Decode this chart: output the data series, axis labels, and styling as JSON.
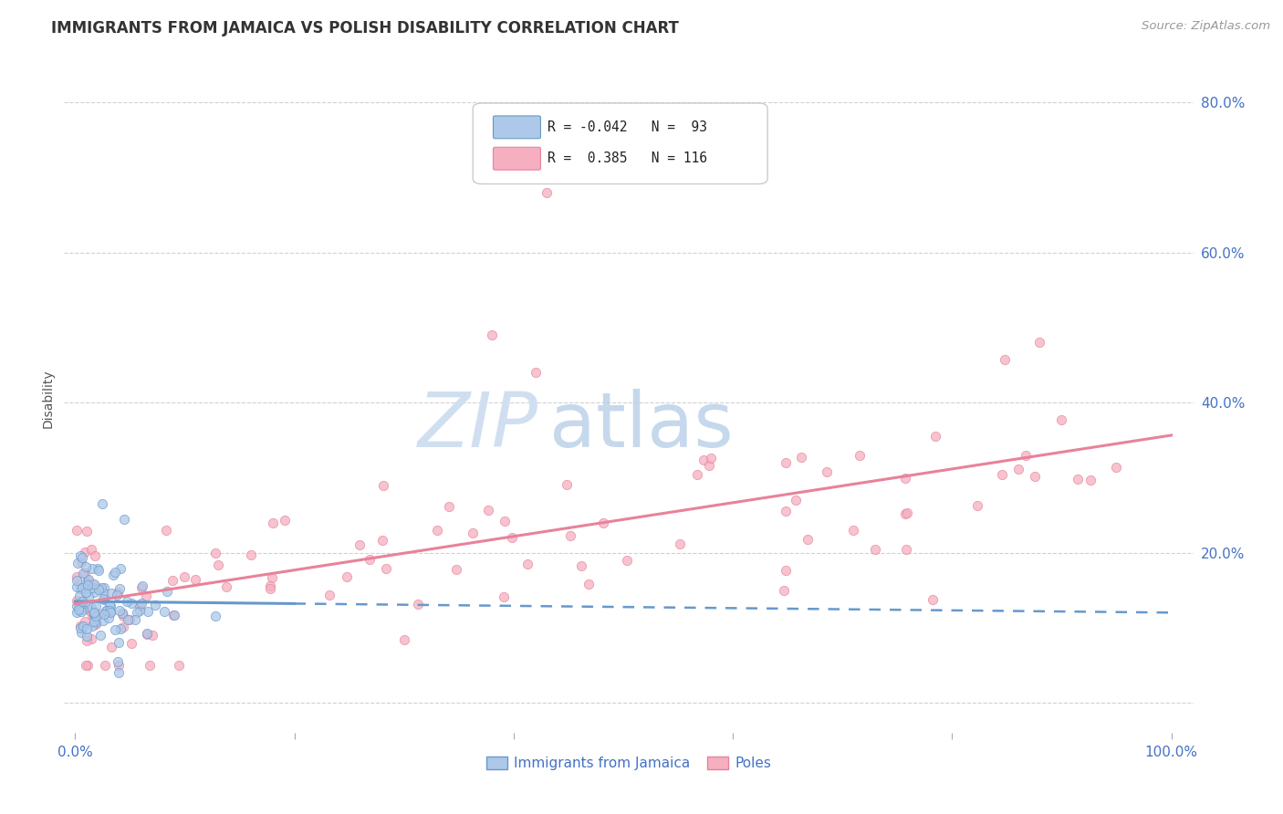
{
  "title": "IMMIGRANTS FROM JAMAICA VS POLISH DISABILITY CORRELATION CHART",
  "source": "Source: ZipAtlas.com",
  "ylabel": "Disability",
  "xlim": [
    -0.01,
    1.02
  ],
  "ylim": [
    -0.04,
    0.85
  ],
  "xticks": [
    0.0,
    0.2,
    0.4,
    0.6,
    0.8,
    1.0
  ],
  "xticklabels": [
    "0.0%",
    "",
    "",
    "",
    "",
    "100.0%"
  ],
  "yticks": [
    0.0,
    0.2,
    0.4,
    0.6,
    0.8
  ],
  "yticklabels": [
    "",
    "20.0%",
    "40.0%",
    "60.0%",
    "80.0%"
  ],
  "legend_R1": "-0.042",
  "legend_N1": "93",
  "legend_R2": "0.385",
  "legend_N2": "116",
  "color_jamaica": "#adc8e8",
  "color_poles": "#f5afc0",
  "color_jamaica_line": "#6699cc",
  "color_poles_line": "#e8829a",
  "background": "#ffffff",
  "grid_color": "#cccccc",
  "tick_color": "#aaaaaa",
  "title_color": "#333333",
  "source_color": "#999999",
  "axis_label_color": "#4472c4",
  "watermark_color": "#d0dff0"
}
